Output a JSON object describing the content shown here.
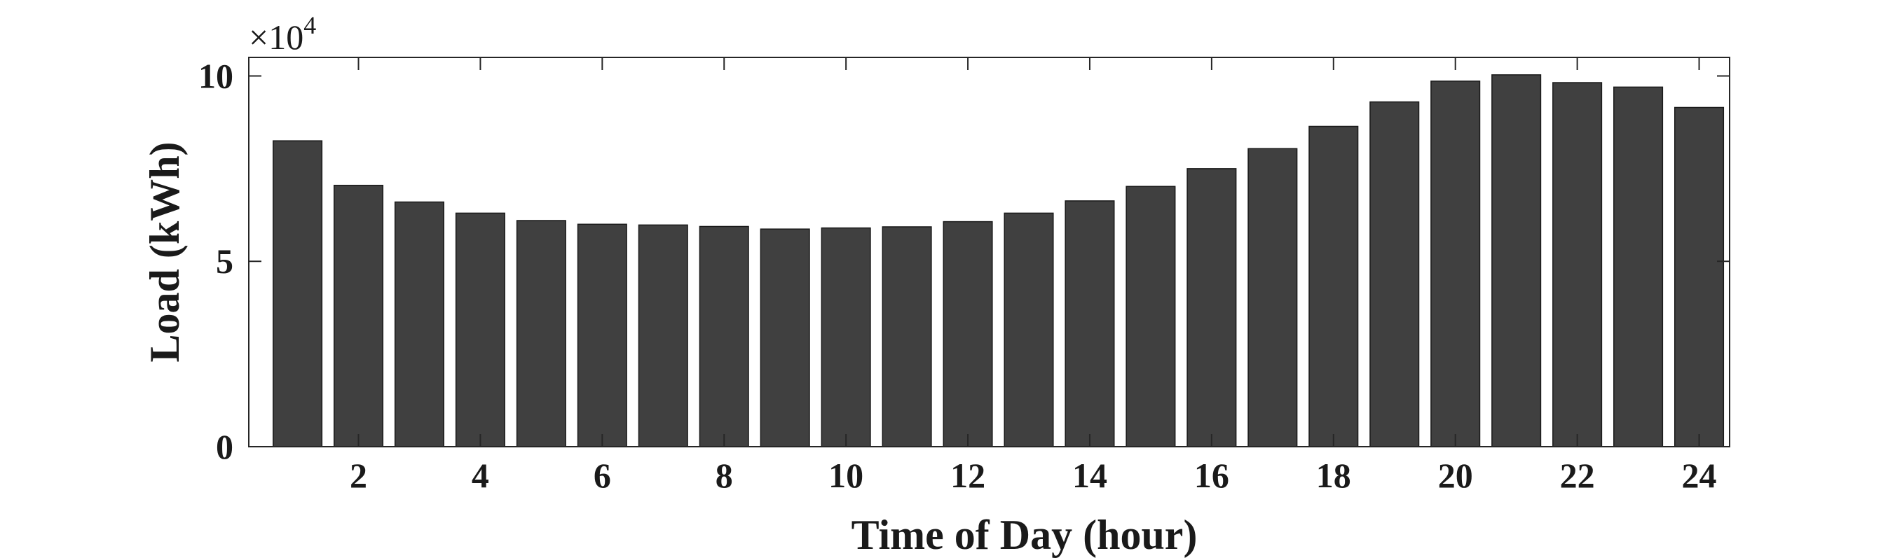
{
  "chart_data": {
    "type": "bar",
    "title": "",
    "xlabel": "Time of Day (hour)",
    "ylabel": "Load (kWh)",
    "y_multiplier_label": "×10",
    "y_multiplier_exponent": "4",
    "categories": [
      1,
      2,
      3,
      4,
      5,
      6,
      7,
      8,
      9,
      10,
      11,
      12,
      13,
      14,
      15,
      16,
      17,
      18,
      19,
      20,
      21,
      22,
      23,
      24
    ],
    "values": [
      82500,
      70500,
      66000,
      63000,
      61000,
      60000,
      59800,
      59400,
      58700,
      59000,
      59300,
      60700,
      63000,
      66300,
      70200,
      75000,
      80400,
      86400,
      93000,
      98600,
      100300,
      98200,
      97000,
      91500
    ],
    "xlim": [
      0.2,
      24.5
    ],
    "ylim": [
      0,
      105000
    ],
    "x_ticks": [
      2,
      4,
      6,
      8,
      10,
      12,
      14,
      16,
      18,
      20,
      22,
      24
    ],
    "x_tick_labels": [
      "2",
      "4",
      "6",
      "8",
      "10",
      "12",
      "14",
      "16",
      "18",
      "20",
      "22",
      "24"
    ],
    "y_ticks": [
      0,
      50000,
      100000
    ],
    "y_tick_labels": [
      "0",
      "5",
      "10"
    ],
    "grid": false,
    "bar_color": "#404040",
    "bar_edge_color": "#1a1a1a"
  }
}
